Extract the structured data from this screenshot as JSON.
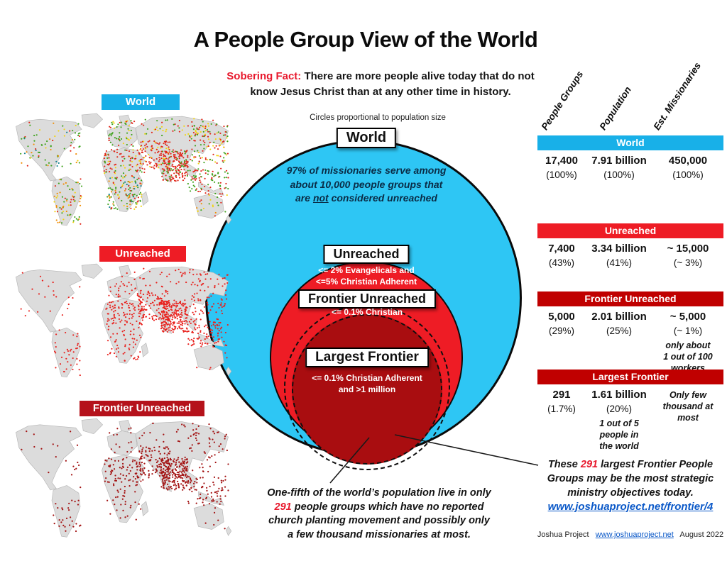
{
  "title": "A People Group View of the World",
  "sobering": {
    "label": "Sobering Fact:",
    "line1": "There are more people alive today that do not",
    "line2": "know Jesus Christ than at any other time in history."
  },
  "caption": "Circles proportional to population size",
  "colors": {
    "cyan_bar": "#18b0e8",
    "cyan_circle": "#2ec6f4",
    "red": "#ee1c25",
    "dark_red_bar": "#c00000",
    "dark_red_circle": "#a90d10",
    "accent_red": "#e8192d",
    "link_blue": "#0a58c8",
    "navy": "#0a2c46"
  },
  "diagram": {
    "world_label": "World",
    "world_note": {
      "l1": "97% of missionaries serve among",
      "l2": "about 10,000 people groups that",
      "l3_pre": "are ",
      "l3_u": "not",
      "l3_post": " considered unreached"
    },
    "unreached_label": "Unreached",
    "unreached_criteria": {
      "l1": "<= 2% Evangelicals and",
      "l2": "<=5% Christian Adherent"
    },
    "frontier_label": "Frontier Unreached",
    "frontier_criteria": "<= 0.1% Christian",
    "largest_label": "Largest Frontier",
    "largest_criteria": {
      "l1": "<= 0.1% Christian Adherent",
      "l2": "and >1 million"
    }
  },
  "maps": [
    {
      "label": "World",
      "bar_color": "#18b0e8",
      "palette": [
        "#e02619",
        "#3fa21c",
        "#f2d410",
        "#f08c00",
        "#11818f",
        "#2e6bc4"
      ]
    },
    {
      "label": "Unreached",
      "bar_color": "#ee1c25",
      "palette": [
        "#e8211d"
      ]
    },
    {
      "label": "Frontier Unreached",
      "bar_color": "#b5121b",
      "palette": [
        "#a31313"
      ]
    }
  ],
  "table": {
    "col_headers": [
      "People Groups",
      "Population",
      "Est. Missionaries"
    ],
    "rows": [
      {
        "name": "World",
        "bar_color": "#18b0e8",
        "cells": [
          {
            "value": "17,400",
            "pct": "(100%)"
          },
          {
            "value": "7.91 billion",
            "pct": "(100%)"
          },
          {
            "value": "450,000",
            "pct": "(100%)"
          }
        ]
      },
      {
        "name": "Unreached",
        "bar_color": "#ee1c25",
        "cells": [
          {
            "value": "7,400",
            "pct": "(43%)"
          },
          {
            "value": "3.34 billion",
            "pct": "(41%)"
          },
          {
            "value": "~ 15,000",
            "pct": "(~ 3%)"
          }
        ]
      },
      {
        "name": "Frontier Unreached",
        "bar_color": "#c00000",
        "cells": [
          {
            "value": "5,000",
            "pct": "(29%)"
          },
          {
            "value": "2.01 billion",
            "pct": "(25%)"
          },
          {
            "value": "~ 5,000",
            "pct": "(~ 1%)",
            "note_lines": [
              "only about",
              "1 out of 100",
              "workers"
            ]
          }
        ]
      },
      {
        "name": "Largest Frontier",
        "bar_color": "#c00000",
        "cells": [
          {
            "value": "291",
            "pct": "(1.7%)"
          },
          {
            "value": "1.61 billion",
            "pct": "(20%)",
            "note_lines": [
              "1 out of 5",
              "people in",
              "the world"
            ]
          },
          {
            "note_lines": [
              "Only few",
              "thousand at",
              "most"
            ]
          }
        ]
      }
    ]
  },
  "notes": {
    "center": {
      "l1": "One-fifth of the world’s population live in only",
      "l2_red": "291",
      "l2_post": " people groups which have no reported",
      "l3": "church planting movement and possibly only",
      "l4": "a few thousand missionaries at most."
    },
    "right": {
      "l1_pre": "These ",
      "l1_red": "291",
      "l1_post": " largest Frontier People",
      "l2": "Groups may be the most strategic",
      "l3": "ministry objectives today.",
      "link": "www.joshuaproject.net/frontier/4"
    }
  },
  "footer": {
    "name": "Joshua Project",
    "link": "www.joshuaproject.net",
    "date": "August 2022"
  }
}
